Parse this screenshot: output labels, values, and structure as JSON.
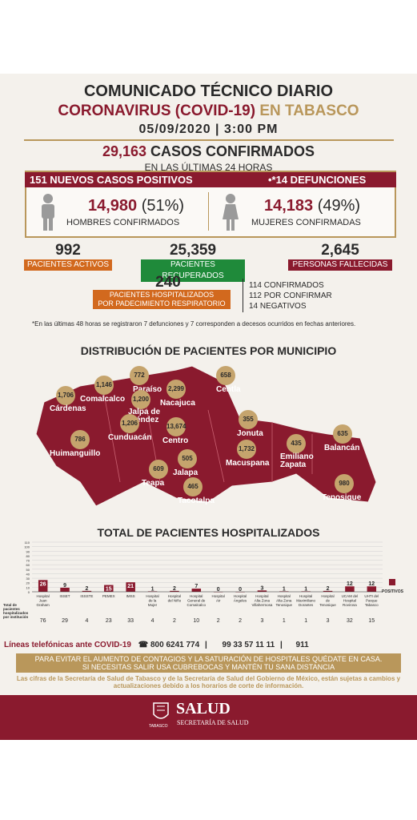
{
  "header": {
    "title_line1": "COMUNICADO TÉCNICO DIARIO",
    "title_line2a": "CORONAVIRUS (COVID-19)",
    "title_line2b": "EN TABASCO",
    "date_line": "05/09/2020 | 3:00 PM"
  },
  "summary": {
    "confirmed_num": "29,163",
    "confirmed_label": "CASOS CONFIRMADOS",
    "last24": "EN LAS ÚLTIMAS 24 HORAS",
    "new_positive": "151 NUEVOS CASOS POSITIVOS",
    "deaths": "•*14 DEFUNCIONES",
    "men_num": "14,980",
    "men_pct": "(51%)",
    "men_label": "HOMBRES CONFIRMADOS",
    "women_num": "14,183",
    "women_pct": "(49%)",
    "women_label": "MUJERES CONFIRMADAS"
  },
  "stats": {
    "active_num": "992",
    "active_label": "PACIENTES ACTIVOS",
    "recovered_num": "25,359",
    "recovered_label": "PACIENTES RECUPERADOS",
    "dead_num": "2,645",
    "dead_label": "PERSONAS FALLECIDAS",
    "hosp_num": "240",
    "hosp_label1": "PACIENTES HOSPITALIZADOS",
    "hosp_label2": "POR PADECIMIENTO RESPIRATORIO",
    "hosp_confirmed": "114 CONFIRMADOS",
    "hosp_pending": "112 POR CONFIRMAR",
    "hosp_negative": "14  NEGATIVOS",
    "colors": {
      "active": "#d2691e",
      "recovered": "#1f8a3a",
      "dead": "#8a1a2e",
      "hosp": "#d2691e"
    }
  },
  "note": "*En las últimas 48 horas se registraron 7 defunciones y 7 corresponden a decesos ocurridos en fechas anteriores.",
  "map": {
    "title": "DISTRIBUCIÓN DE PACIENTES POR MUNICIPIO",
    "municipios": [
      {
        "name": "Cárdenas",
        "value": "1,706"
      },
      {
        "name": "Comalcalco",
        "value": "1,146"
      },
      {
        "name": "Paraíso",
        "value": "772"
      },
      {
        "name": "Jalpa de Méndez",
        "value": "1,200"
      },
      {
        "name": "Nacajuca",
        "value": "2,299"
      },
      {
        "name": "Centla",
        "value": "658"
      },
      {
        "name": "Huimanguillo",
        "value": "786"
      },
      {
        "name": "Cunduacán",
        "value": "1,206"
      },
      {
        "name": "Centro",
        "value": "13,674"
      },
      {
        "name": "Jonuta",
        "value": "355"
      },
      {
        "name": "Macuspana",
        "value": "1,732"
      },
      {
        "name": "Emiliano Zapata",
        "value": "435"
      },
      {
        "name": "Balancán",
        "value": "635"
      },
      {
        "name": "Teapa",
        "value": "609"
      },
      {
        "name": "Jalapa",
        "value": "505"
      },
      {
        "name": "Tacotalpa",
        "value": "465"
      },
      {
        "name": "Tenosique",
        "value": "980"
      }
    ]
  },
  "chart_data": {
    "type": "bar",
    "title": "TOTAL DE PACIENTES HOSPITALIZADOS",
    "legend": "POSITIVOS",
    "ylim": [
      0,
      110
    ],
    "yticks": [
      0,
      10,
      20,
      30,
      40,
      50,
      60,
      70,
      80,
      90,
      100,
      110
    ],
    "row_label": "Total de pacientes hospitalizados por institución",
    "categories": [
      "Hospital Juan Graham",
      "ISSET",
      "ISSSTE",
      "PEMEX",
      "IMSS",
      "Hospital de la Mujer",
      "Hospital del Niño",
      "Hospital General de Comalcalco",
      "Hospital Air",
      "Hospital Ángeles",
      "Hospital Alta Zona Villahermosa",
      "Hospital Alta Zona Tenosique",
      "Hospital Maximiliano Dorantes",
      "Hospital de Tenosique",
      "UCAM del Hospital Rovirosa",
      "UHTI del Parque Tabasco"
    ],
    "values": [
      26,
      9,
      2,
      15,
      21,
      1,
      2,
      7,
      0,
      0,
      3,
      1,
      1,
      2,
      12,
      12
    ],
    "totals": [
      "76",
      "29",
      "4",
      "23",
      "33",
      "4",
      "2",
      "10",
      "2",
      "2",
      "3",
      "1",
      "1",
      "3",
      "32",
      "15"
    ],
    "color": "#8a1a2e"
  },
  "footer": {
    "lineas_label": "Líneas telefónicas ante COVID-19",
    "phone1": "800 6241 774",
    "phone2": "99 33 57 11 11",
    "phone3": "911",
    "msg1": "PARA EVITAR EL AUMENTO DE CONTAGIOS Y LA SATURACIÓN DE HOSPITALES QUÉDATE EN CASA.",
    "msg2": "SI NECESITAS SALIR USA CUBREBOCAS Y MANTÉN TU SANA DISTANCIA",
    "disclaimer": "Las cifras de la Secretaría de Salud de Tabasco y de la Secretaría de Salud del Gobierno de México, están sujetas a cambios y actualizaciones debido a los horarios de corte de información.",
    "logo_main": "SALUD",
    "logo_sub": "SECRETARÍA DE SALUD",
    "logo_state": "TABASCO"
  }
}
